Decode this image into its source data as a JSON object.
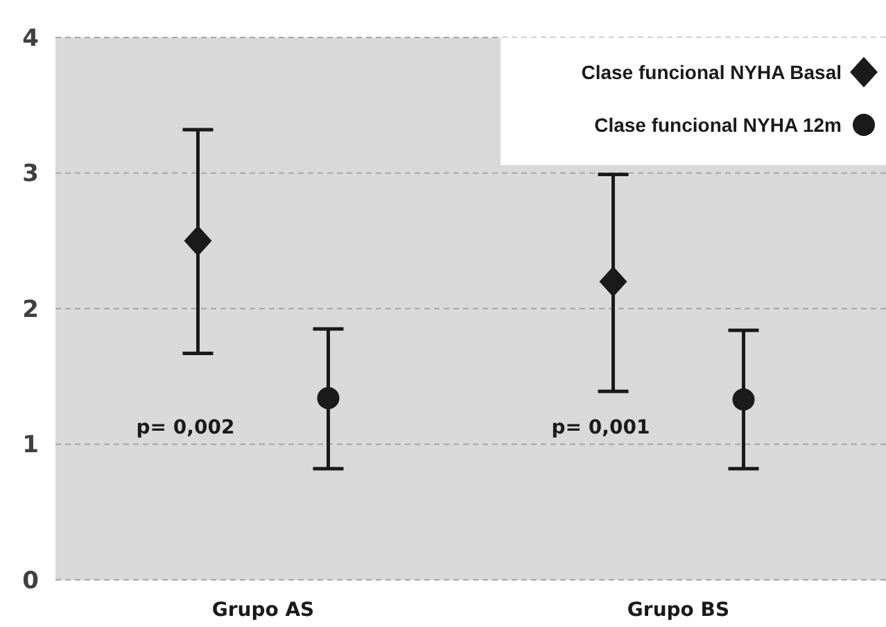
{
  "chart_data": {
    "type": "scatter",
    "categories": [
      "Grupo AS",
      "Grupo BS"
    ],
    "series": [
      {
        "name": "Clase funcional NYHA Basal",
        "color": "#1a1a1a",
        "marker": "diamond",
        "values": [
          2.5,
          2.2
        ],
        "errors": [
          [
            1.67,
            3.32
          ],
          [
            1.39,
            2.99
          ]
        ]
      },
      {
        "name": "Clase funcional NYHA 12m",
        "color": "#1a1a1a",
        "marker": "circle",
        "values": [
          1.34,
          1.33
        ],
        "errors": [
          [
            0.82,
            1.85
          ],
          [
            0.82,
            1.84
          ]
        ]
      }
    ],
    "annotations": [
      "p= 0,002",
      "p= 0,001"
    ],
    "ylim": [
      0,
      4
    ],
    "yticks": [
      0,
      1,
      2,
      3,
      4
    ],
    "grid": "y",
    "legend": "top right"
  }
}
